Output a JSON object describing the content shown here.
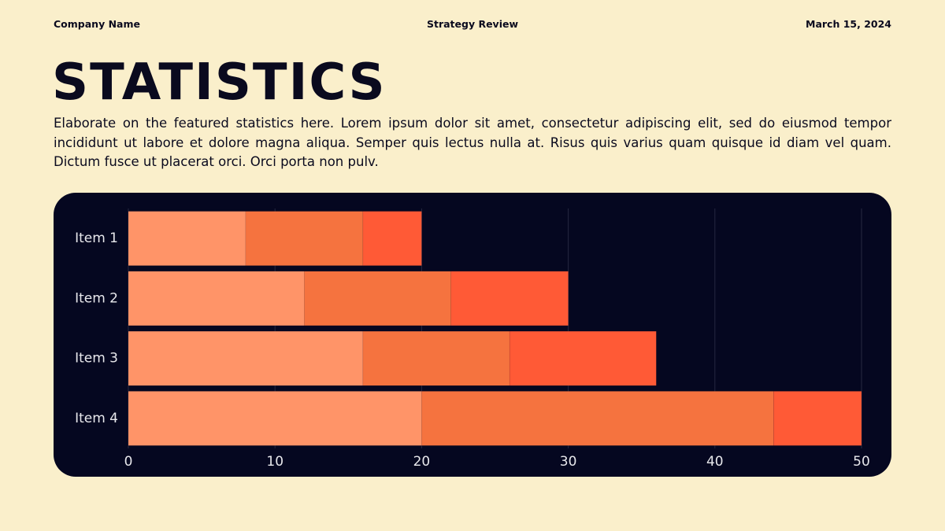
{
  "header": {
    "company": "Company Name",
    "center": "Strategy Review",
    "date": "March 15, 2024"
  },
  "title": "STATISTICS",
  "body": "Elaborate on the featured statistics here. Lorem ipsum dolor sit amet, consectetur adipiscing elit, sed do eiusmod tempor incididunt ut labore et dolore magna aliqua. Semper quis lectus nulla at. Risus quis varius quam quisque id diam vel quam. Dictum fusce ut placerat orci. Orci porta non pulv.",
  "chart_data": {
    "type": "stacked-barh",
    "categories": [
      "Item 1",
      "Item 2",
      "Item 3",
      "Item 4"
    ],
    "series": [
      {
        "color": "#FF9468",
        "values": [
          8,
          12,
          16,
          20
        ]
      },
      {
        "color": "#F5733F",
        "values": [
          8,
          10,
          10,
          24
        ]
      },
      {
        "color": "#FF5A36",
        "values": [
          4,
          8,
          10,
          6
        ]
      }
    ],
    "xlim": [
      0,
      50
    ],
    "xticks": [
      0,
      10,
      20,
      30,
      40,
      50
    ],
    "grid": true
  }
}
